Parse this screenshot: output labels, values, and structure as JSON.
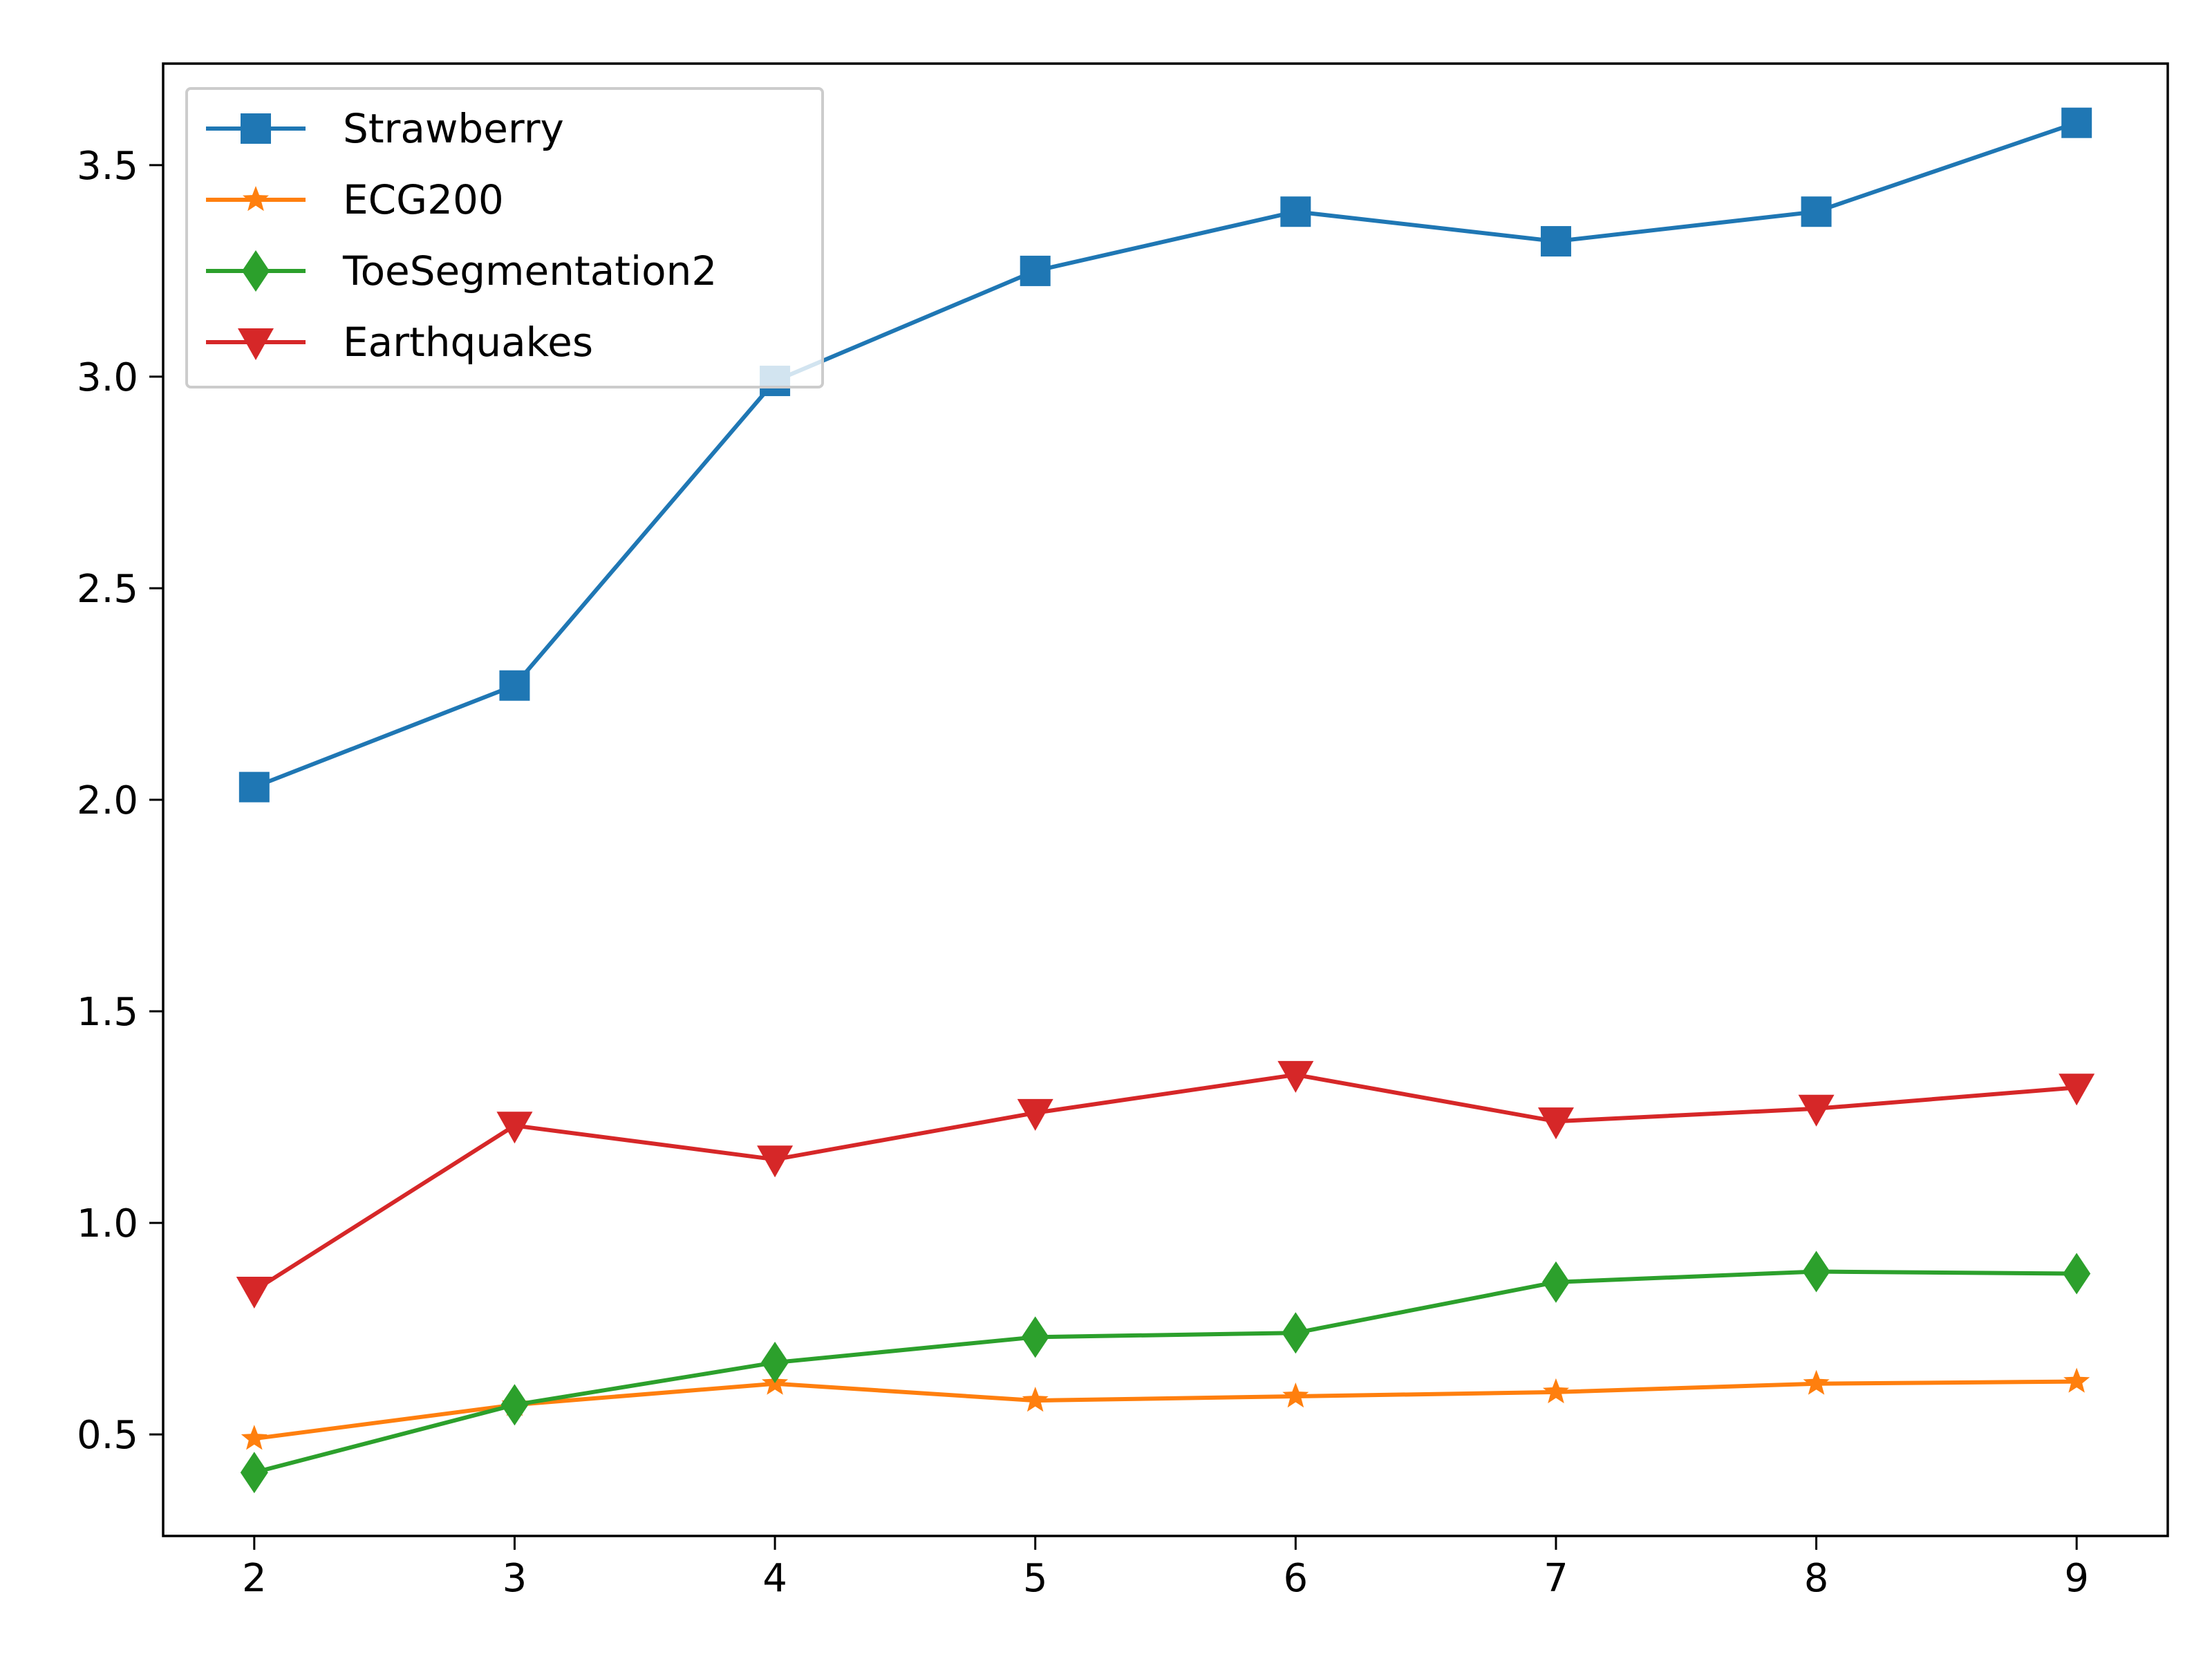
{
  "chart_data": {
    "type": "line",
    "title": "",
    "xlabel": "",
    "ylabel": "",
    "x": [
      2,
      3,
      4,
      5,
      6,
      7,
      8,
      9
    ],
    "xlim": [
      1.65,
      9.35
    ],
    "ylim": [
      0.26,
      3.74
    ],
    "x_ticks": [
      "2",
      "3",
      "4",
      "5",
      "6",
      "7",
      "8",
      "9"
    ],
    "y_ticks": [
      "0.5",
      "1.0",
      "1.5",
      "2.0",
      "2.5",
      "3.0",
      "3.5"
    ],
    "grid": false,
    "legend": "top-left",
    "series": [
      {
        "name": "Strawberry",
        "color": "#1f77b4",
        "marker": "square",
        "values": [
          2.03,
          2.27,
          2.99,
          3.25,
          3.39,
          3.32,
          3.39,
          3.6
        ]
      },
      {
        "name": "ECG200",
        "color": "#ff7f0e",
        "marker": "star",
        "values": [
          0.49,
          0.57,
          0.62,
          0.58,
          0.59,
          0.6,
          0.62,
          0.625
        ]
      },
      {
        "name": "ToeSegmentation2",
        "color": "#2ca02c",
        "marker": "diamond",
        "values": [
          0.41,
          0.57,
          0.67,
          0.73,
          0.74,
          0.86,
          0.885,
          0.88
        ]
      },
      {
        "name": "Earthquakes",
        "color": "#d62728",
        "marker": "triangle-down",
        "values": [
          0.84,
          1.23,
          1.15,
          1.26,
          1.35,
          1.24,
          1.27,
          1.32
        ]
      }
    ]
  }
}
